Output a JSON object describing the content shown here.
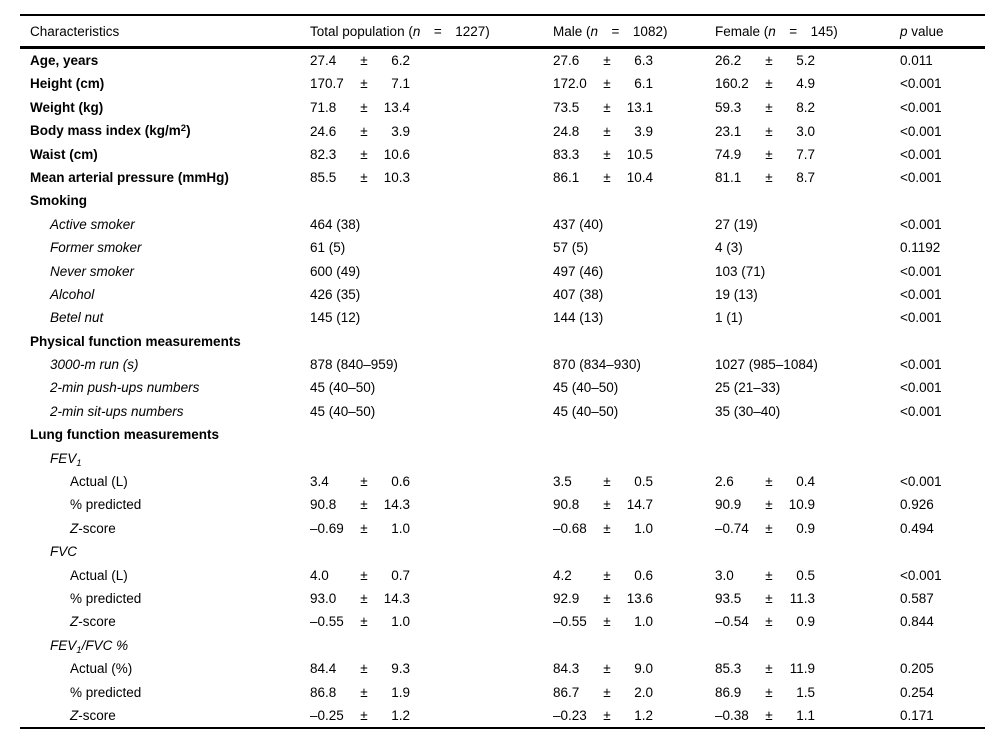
{
  "pm": "±",
  "colors": {
    "text": "#000000",
    "background": "#ffffff",
    "rule": "#000000"
  },
  "table": {
    "header": {
      "characteristics": [
        {
          "t": "Characteristics"
        }
      ],
      "total": [
        {
          "t": "Total population ("
        },
        {
          "t": "n",
          "s": "i"
        },
        {
          "t": " = "
        },
        {
          "t": "1227)"
        }
      ],
      "male": [
        {
          "t": "Male ("
        },
        {
          "t": "n",
          "s": "i"
        },
        {
          "t": " = "
        },
        {
          "t": "1082)"
        }
      ],
      "female": [
        {
          "t": "Female ("
        },
        {
          "t": "n",
          "s": "i"
        },
        {
          "t": " = "
        },
        {
          "t": "145)"
        }
      ],
      "pvalue": [
        {
          "t": "p",
          "s": "i"
        },
        {
          "t": " value"
        }
      ]
    },
    "rows": [
      {
        "label": [
          {
            "t": "Age, years",
            "s": "b"
          }
        ],
        "indent": 0,
        "total": {
          "v": "27.4",
          "sd": "6.2"
        },
        "male": {
          "v": "27.6",
          "sd": "6.3"
        },
        "female": {
          "v": "26.2",
          "sd": "5.2"
        },
        "p": "0.011"
      },
      {
        "label": [
          {
            "t": "Height (cm)",
            "s": "b"
          }
        ],
        "indent": 0,
        "total": {
          "v": "170.7",
          "sd": "7.1"
        },
        "male": {
          "v": "172.0",
          "sd": "6.1"
        },
        "female": {
          "v": "160.2",
          "sd": "4.9"
        },
        "p": "<0.001"
      },
      {
        "label": [
          {
            "t": "Weight (kg)",
            "s": "b"
          }
        ],
        "indent": 0,
        "total": {
          "v": "71.8",
          "sd": "13.4"
        },
        "male": {
          "v": "73.5",
          "sd": "13.1"
        },
        "female": {
          "v": "59.3",
          "sd": "8.2"
        },
        "p": "<0.001"
      },
      {
        "label": [
          {
            "t": "Body mass index (kg/m",
            "s": "b"
          },
          {
            "t": "2",
            "s": "b sup"
          },
          {
            "t": ")",
            "s": "b"
          }
        ],
        "indent": 0,
        "total": {
          "v": "24.6",
          "sd": "3.9"
        },
        "male": {
          "v": "24.8",
          "sd": "3.9"
        },
        "female": {
          "v": "23.1",
          "sd": "3.0"
        },
        "p": "<0.001"
      },
      {
        "label": [
          {
            "t": "Waist (cm)",
            "s": "b"
          }
        ],
        "indent": 0,
        "total": {
          "v": "82.3",
          "sd": "10.6"
        },
        "male": {
          "v": "83.3",
          "sd": "10.5"
        },
        "female": {
          "v": "74.9",
          "sd": "7.7"
        },
        "p": "<0.001"
      },
      {
        "label": [
          {
            "t": "Mean arterial pressure (mmHg)",
            "s": "b"
          }
        ],
        "indent": 0,
        "total": {
          "v": "85.5",
          "sd": "10.3"
        },
        "male": {
          "v": "86.1",
          "sd": "10.4"
        },
        "female": {
          "v": "81.1",
          "sd": "8.7"
        },
        "p": "<0.001"
      },
      {
        "label": [
          {
            "t": "Smoking",
            "s": "b"
          }
        ],
        "indent": 0
      },
      {
        "label": [
          {
            "t": "Active smoker",
            "s": "i"
          }
        ],
        "indent": 1,
        "total": {
          "text": "464 (38)"
        },
        "male": {
          "text": "437 (40)"
        },
        "female": {
          "text": "27 (19)"
        },
        "p": "<0.001"
      },
      {
        "label": [
          {
            "t": "Former smoker",
            "s": "i"
          }
        ],
        "indent": 1,
        "total": {
          "text": "61 (5)"
        },
        "male": {
          "text": "57 (5)"
        },
        "female": {
          "text": "4 (3)"
        },
        "p": "0.1192"
      },
      {
        "label": [
          {
            "t": "Never smoker",
            "s": "i"
          }
        ],
        "indent": 1,
        "total": {
          "text": "600 (49)"
        },
        "male": {
          "text": "497 (46)"
        },
        "female": {
          "text": "103 (71)"
        },
        "p": "<0.001"
      },
      {
        "label": [
          {
            "t": "Alcohol",
            "s": "i"
          }
        ],
        "indent": 1,
        "total": {
          "text": "426 (35)"
        },
        "male": {
          "text": "407 (38)"
        },
        "female": {
          "text": "19 (13)"
        },
        "p": "<0.001"
      },
      {
        "label": [
          {
            "t": "Betel nut",
            "s": "i"
          }
        ],
        "indent": 1,
        "total": {
          "text": "145 (12)"
        },
        "male": {
          "text": "144 (13)"
        },
        "female": {
          "text": "1 (1)"
        },
        "p": "<0.001"
      },
      {
        "label": [
          {
            "t": "Physical function measurements",
            "s": "b"
          }
        ],
        "indent": 0
      },
      {
        "label": [
          {
            "t": "3000-m run (s)",
            "s": "i"
          }
        ],
        "indent": 1,
        "total": {
          "text": "878 (840–959)"
        },
        "male": {
          "text": "870 (834–930)"
        },
        "female": {
          "text": "1027 (985–1084)"
        },
        "p": "<0.001"
      },
      {
        "label": [
          {
            "t": "2-min push-ups numbers",
            "s": "i"
          }
        ],
        "indent": 1,
        "total": {
          "text": "45 (40–50)"
        },
        "male": {
          "text": "45 (40–50)"
        },
        "female": {
          "text": "25 (21–33)"
        },
        "p": "<0.001"
      },
      {
        "label": [
          {
            "t": "2-min sit-ups numbers",
            "s": "i"
          }
        ],
        "indent": 1,
        "total": {
          "text": "45 (40–50)"
        },
        "male": {
          "text": "45 (40–50)"
        },
        "female": {
          "text": "35 (30–40)"
        },
        "p": "<0.001"
      },
      {
        "label": [
          {
            "t": "Lung function measurements",
            "s": "b"
          }
        ],
        "indent": 0
      },
      {
        "label": [
          {
            "t": "FEV",
            "s": "i"
          },
          {
            "t": "1",
            "s": "i sub"
          }
        ],
        "indent": 1
      },
      {
        "label": [
          {
            "t": "Actual (L)"
          }
        ],
        "indent": 2,
        "total": {
          "v": "3.4",
          "sd": "0.6"
        },
        "male": {
          "v": "3.5",
          "sd": "0.5"
        },
        "female": {
          "v": "2.6",
          "sd": "0.4"
        },
        "p": "<0.001"
      },
      {
        "label": [
          {
            "t": "% predicted"
          }
        ],
        "indent": 2,
        "total": {
          "v": "90.8",
          "sd": "14.3"
        },
        "male": {
          "v": "90.8",
          "sd": "14.7"
        },
        "female": {
          "v": "90.9",
          "sd": "10.9"
        },
        "p": "0.926"
      },
      {
        "label": [
          {
            "t": "Z",
            "s": "i"
          },
          {
            "t": "-score"
          }
        ],
        "indent": 2,
        "total": {
          "v": "–0.69",
          "sd": "1.0"
        },
        "male": {
          "v": "–0.68",
          "sd": "1.0"
        },
        "female": {
          "v": "–0.74",
          "sd": "0.9"
        },
        "p": "0.494"
      },
      {
        "label": [
          {
            "t": "FVC",
            "s": "i"
          }
        ],
        "indent": 1
      },
      {
        "label": [
          {
            "t": "Actual (L)"
          }
        ],
        "indent": 2,
        "total": {
          "v": "4.0",
          "sd": "0.7"
        },
        "male": {
          "v": "4.2",
          "sd": "0.6"
        },
        "female": {
          "v": "3.0",
          "sd": "0.5"
        },
        "p": "<0.001"
      },
      {
        "label": [
          {
            "t": "% predicted"
          }
        ],
        "indent": 2,
        "total": {
          "v": "93.0",
          "sd": "14.3"
        },
        "male": {
          "v": "92.9",
          "sd": "13.6"
        },
        "female": {
          "v": "93.5",
          "sd": "11.3"
        },
        "p": "0.587"
      },
      {
        "label": [
          {
            "t": "Z",
            "s": "i"
          },
          {
            "t": "-score"
          }
        ],
        "indent": 2,
        "total": {
          "v": "–0.55",
          "sd": "1.0"
        },
        "male": {
          "v": "–0.55",
          "sd": "1.0"
        },
        "female": {
          "v": "–0.54",
          "sd": "0.9"
        },
        "p": "0.844"
      },
      {
        "label": [
          {
            "t": "FEV",
            "s": "i"
          },
          {
            "t": "1",
            "s": "i sub"
          },
          {
            "t": "/FVC %",
            "s": "i"
          }
        ],
        "indent": 1
      },
      {
        "label": [
          {
            "t": "Actual (%)"
          }
        ],
        "indent": 2,
        "total": {
          "v": "84.4",
          "sd": "9.3"
        },
        "male": {
          "v": "84.3",
          "sd": "9.0"
        },
        "female": {
          "v": "85.3",
          "sd": "11.9"
        },
        "p": "0.205"
      },
      {
        "label": [
          {
            "t": "% predicted"
          }
        ],
        "indent": 2,
        "total": {
          "v": "86.8",
          "sd": "1.9"
        },
        "male": {
          "v": "86.7",
          "sd": "2.0"
        },
        "female": {
          "v": "86.9",
          "sd": "1.5"
        },
        "p": "0.254"
      },
      {
        "label": [
          {
            "t": "Z",
            "s": "i"
          },
          {
            "t": "-score"
          }
        ],
        "indent": 2,
        "total": {
          "v": "–0.25",
          "sd": "1.2"
        },
        "male": {
          "v": "–0.23",
          "sd": "1.2"
        },
        "female": {
          "v": "–0.38",
          "sd": "1.1"
        },
        "p": "0.171"
      }
    ]
  }
}
